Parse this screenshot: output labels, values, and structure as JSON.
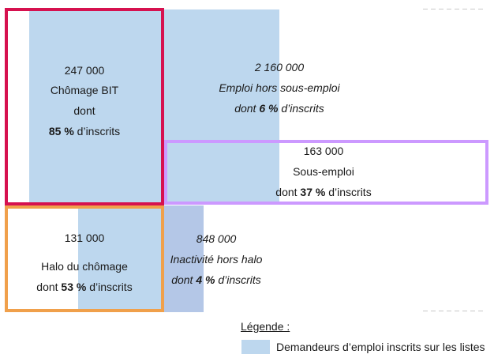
{
  "blocks": {
    "chomage_bit": {
      "value": "247 000",
      "label": "Chômage BIT",
      "prefix": "dont",
      "percent": "85 %",
      "suffix": " d’inscrits",
      "frame_color": "#d6114f"
    },
    "emploi": {
      "value": "2 160 000",
      "label": "Emploi hors sous-emploi",
      "prefix": "dont ",
      "percent": "6 %",
      "suffix": " d’inscrits"
    },
    "sous_emploi": {
      "value": "163 000",
      "label": "Sous-emploi",
      "prefix": "dont ",
      "percent": "37 %",
      "suffix": " d’inscrits",
      "frame_color": "#cc99ff"
    },
    "halo": {
      "value": "131 000",
      "label": "Halo du chômage",
      "prefix": "dont ",
      "percent": "53 %",
      "suffix": " d’inscrits",
      "frame_color": "#f0a04b"
    },
    "inactivite": {
      "value": "848 000",
      "label": "Inactivité hors halo",
      "prefix": "dont ",
      "percent": "4 %",
      "suffix": " d’inscrits"
    }
  },
  "legend": {
    "title": "Légende :",
    "item_label": "Demandeurs d’emploi inscrits sur les listes",
    "swatch_color": "#bdd7ee"
  }
}
